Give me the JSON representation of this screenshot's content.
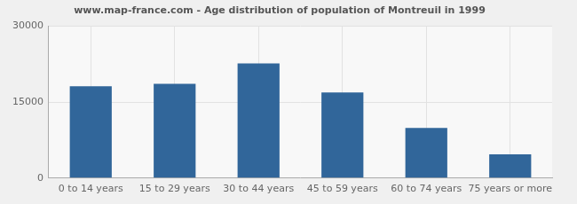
{
  "chart_data": {
    "type": "bar",
    "title": "www.map-france.com - Age distribution of population of Montreuil in 1999",
    "categories": [
      "0 to 14 years",
      "15 to 29 years",
      "30 to 44 years",
      "45 to 59 years",
      "60 to 74 years",
      "75 years or more"
    ],
    "values": [
      18100,
      18600,
      22600,
      16900,
      9900,
      4700
    ],
    "color": "#31669a",
    "ylim": [
      0,
      30000
    ],
    "yticks": [
      0,
      15000,
      30000
    ],
    "grid": true
  }
}
